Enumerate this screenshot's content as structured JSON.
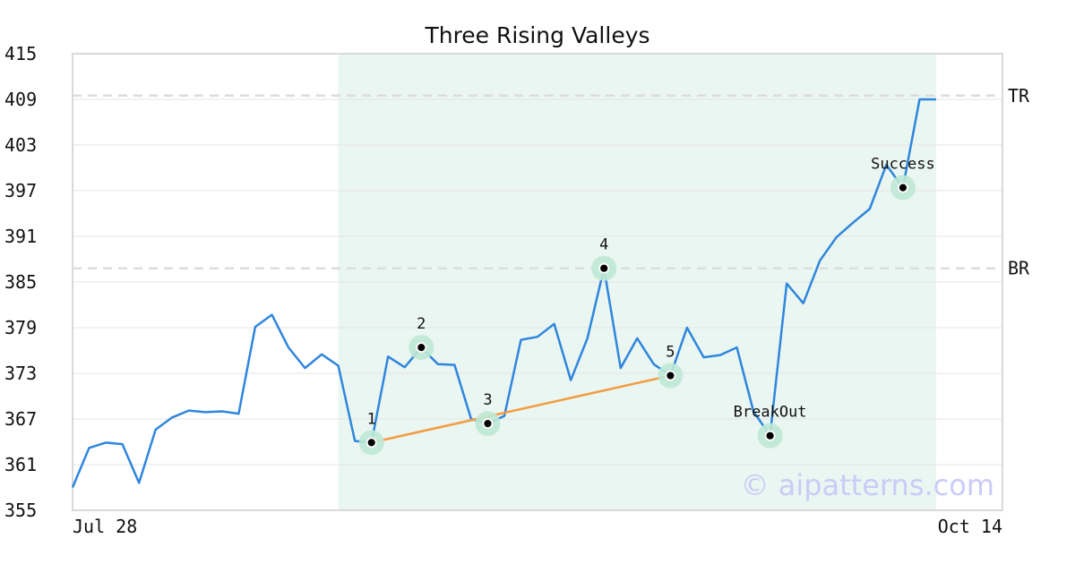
{
  "chart_data": {
    "type": "line",
    "title": "Three Rising Valleys",
    "xlabel": "",
    "ylabel": "",
    "x_tick_labels": [
      "Jul 28",
      "Oct 14"
    ],
    "ylim": [
      355,
      415
    ],
    "yticks": [
      355,
      361,
      367,
      373,
      379,
      385,
      391,
      397,
      403,
      409,
      415
    ],
    "grid": "horizontal",
    "series": [
      {
        "color": "#2f86dd",
        "values": [
          358,
          363.2,
          363.9,
          363.7,
          358.6,
          365.6,
          367.2,
          368.1,
          367.9,
          368.0,
          367.7,
          379.1,
          380.7,
          376.4,
          373.7,
          375.5,
          374.0,
          364.1,
          363.9,
          375.2,
          373.8,
          376.4,
          374.2,
          374.1,
          367.0,
          366.4,
          367.4,
          377.4,
          377.8,
          379.5,
          372.1,
          377.6,
          386.8,
          373.7,
          377.6,
          374.2,
          372.7,
          379.0,
          375.1,
          375.4,
          376.4,
          368.0,
          364.8,
          384.8,
          382.2,
          387.8,
          390.9,
          392.8,
          394.6,
          400.4,
          397.4,
          409.0,
          409.0
        ]
      }
    ],
    "shaded_region": {
      "start_index": 16,
      "end_index": 52,
      "color": "#eaf6f1"
    },
    "levels": [
      {
        "label": "TR",
        "value": 409.5
      },
      {
        "label": "BR",
        "value": 386.8
      }
    ],
    "trendline": {
      "from_index": 18,
      "to_index": 36,
      "from_value": 363.9,
      "to_value": 372.7,
      "color": "#f39c3f"
    },
    "points": [
      {
        "label": "1",
        "index": 18,
        "value": 363.9
      },
      {
        "label": "2",
        "index": 21,
        "value": 376.4
      },
      {
        "label": "3",
        "index": 25,
        "value": 366.4
      },
      {
        "label": "4",
        "index": 32,
        "value": 386.8
      },
      {
        "label": "5",
        "index": 36,
        "value": 372.7
      },
      {
        "label": "BreakOut",
        "index": 42,
        "value": 364.8
      },
      {
        "label": "Success",
        "index": 50,
        "value": 397.4
      }
    ],
    "watermark": "© aipatterns.com"
  }
}
